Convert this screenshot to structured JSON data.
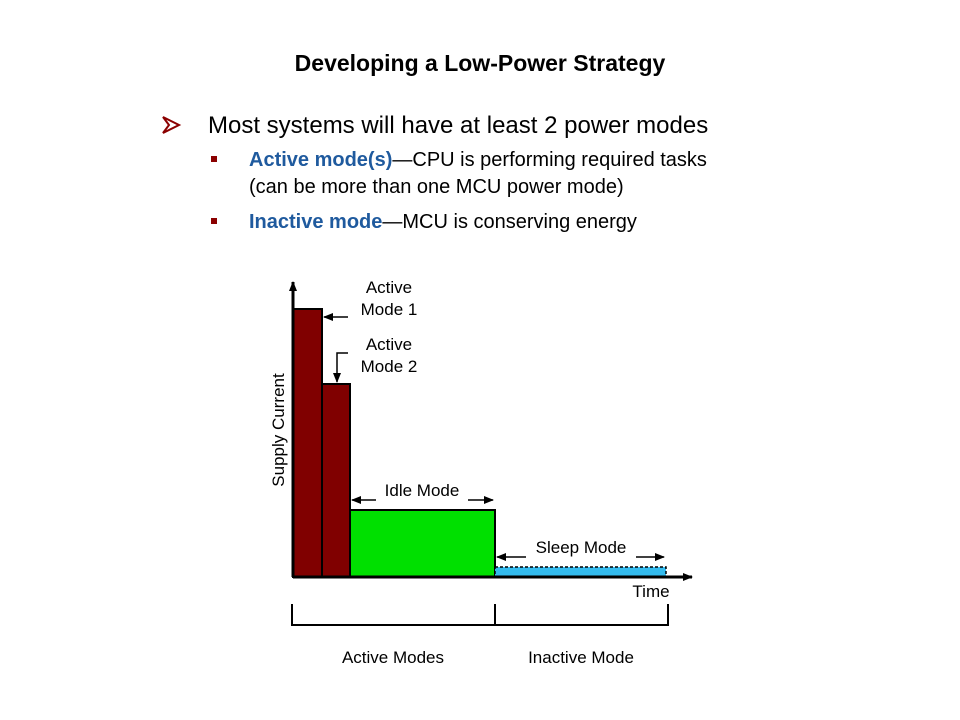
{
  "slide": {
    "title": "Developing a Low-Power Strategy",
    "bullet": "Most systems will have at least 2 power modes",
    "sub_bullets": [
      {
        "highlight": "Active mode(s)",
        "rest": "—CPU is performing required tasks",
        "line2": "(can be more than one MCU power mode)"
      },
      {
        "highlight": "Inactive mode",
        "rest": "—MCU is conserving energy"
      }
    ]
  },
  "diagram": {
    "y_axis_label": "Supply Current",
    "x_axis_label": "Time",
    "modes": [
      {
        "label_line1": "Active",
        "label_line2": "Mode 1",
        "color": "#800000"
      },
      {
        "label_line1": "Active",
        "label_line2": "Mode 2",
        "color": "#800000"
      },
      {
        "label": "Idle Mode",
        "color": "#00e000"
      },
      {
        "label": "Sleep Mode",
        "color": "#33bbee"
      }
    ],
    "groups": [
      "Active Modes",
      "Inactive Mode"
    ]
  },
  "colors": {
    "bullet_highlight": "#1f5a9e",
    "bullet_marker": "#8b0000"
  }
}
